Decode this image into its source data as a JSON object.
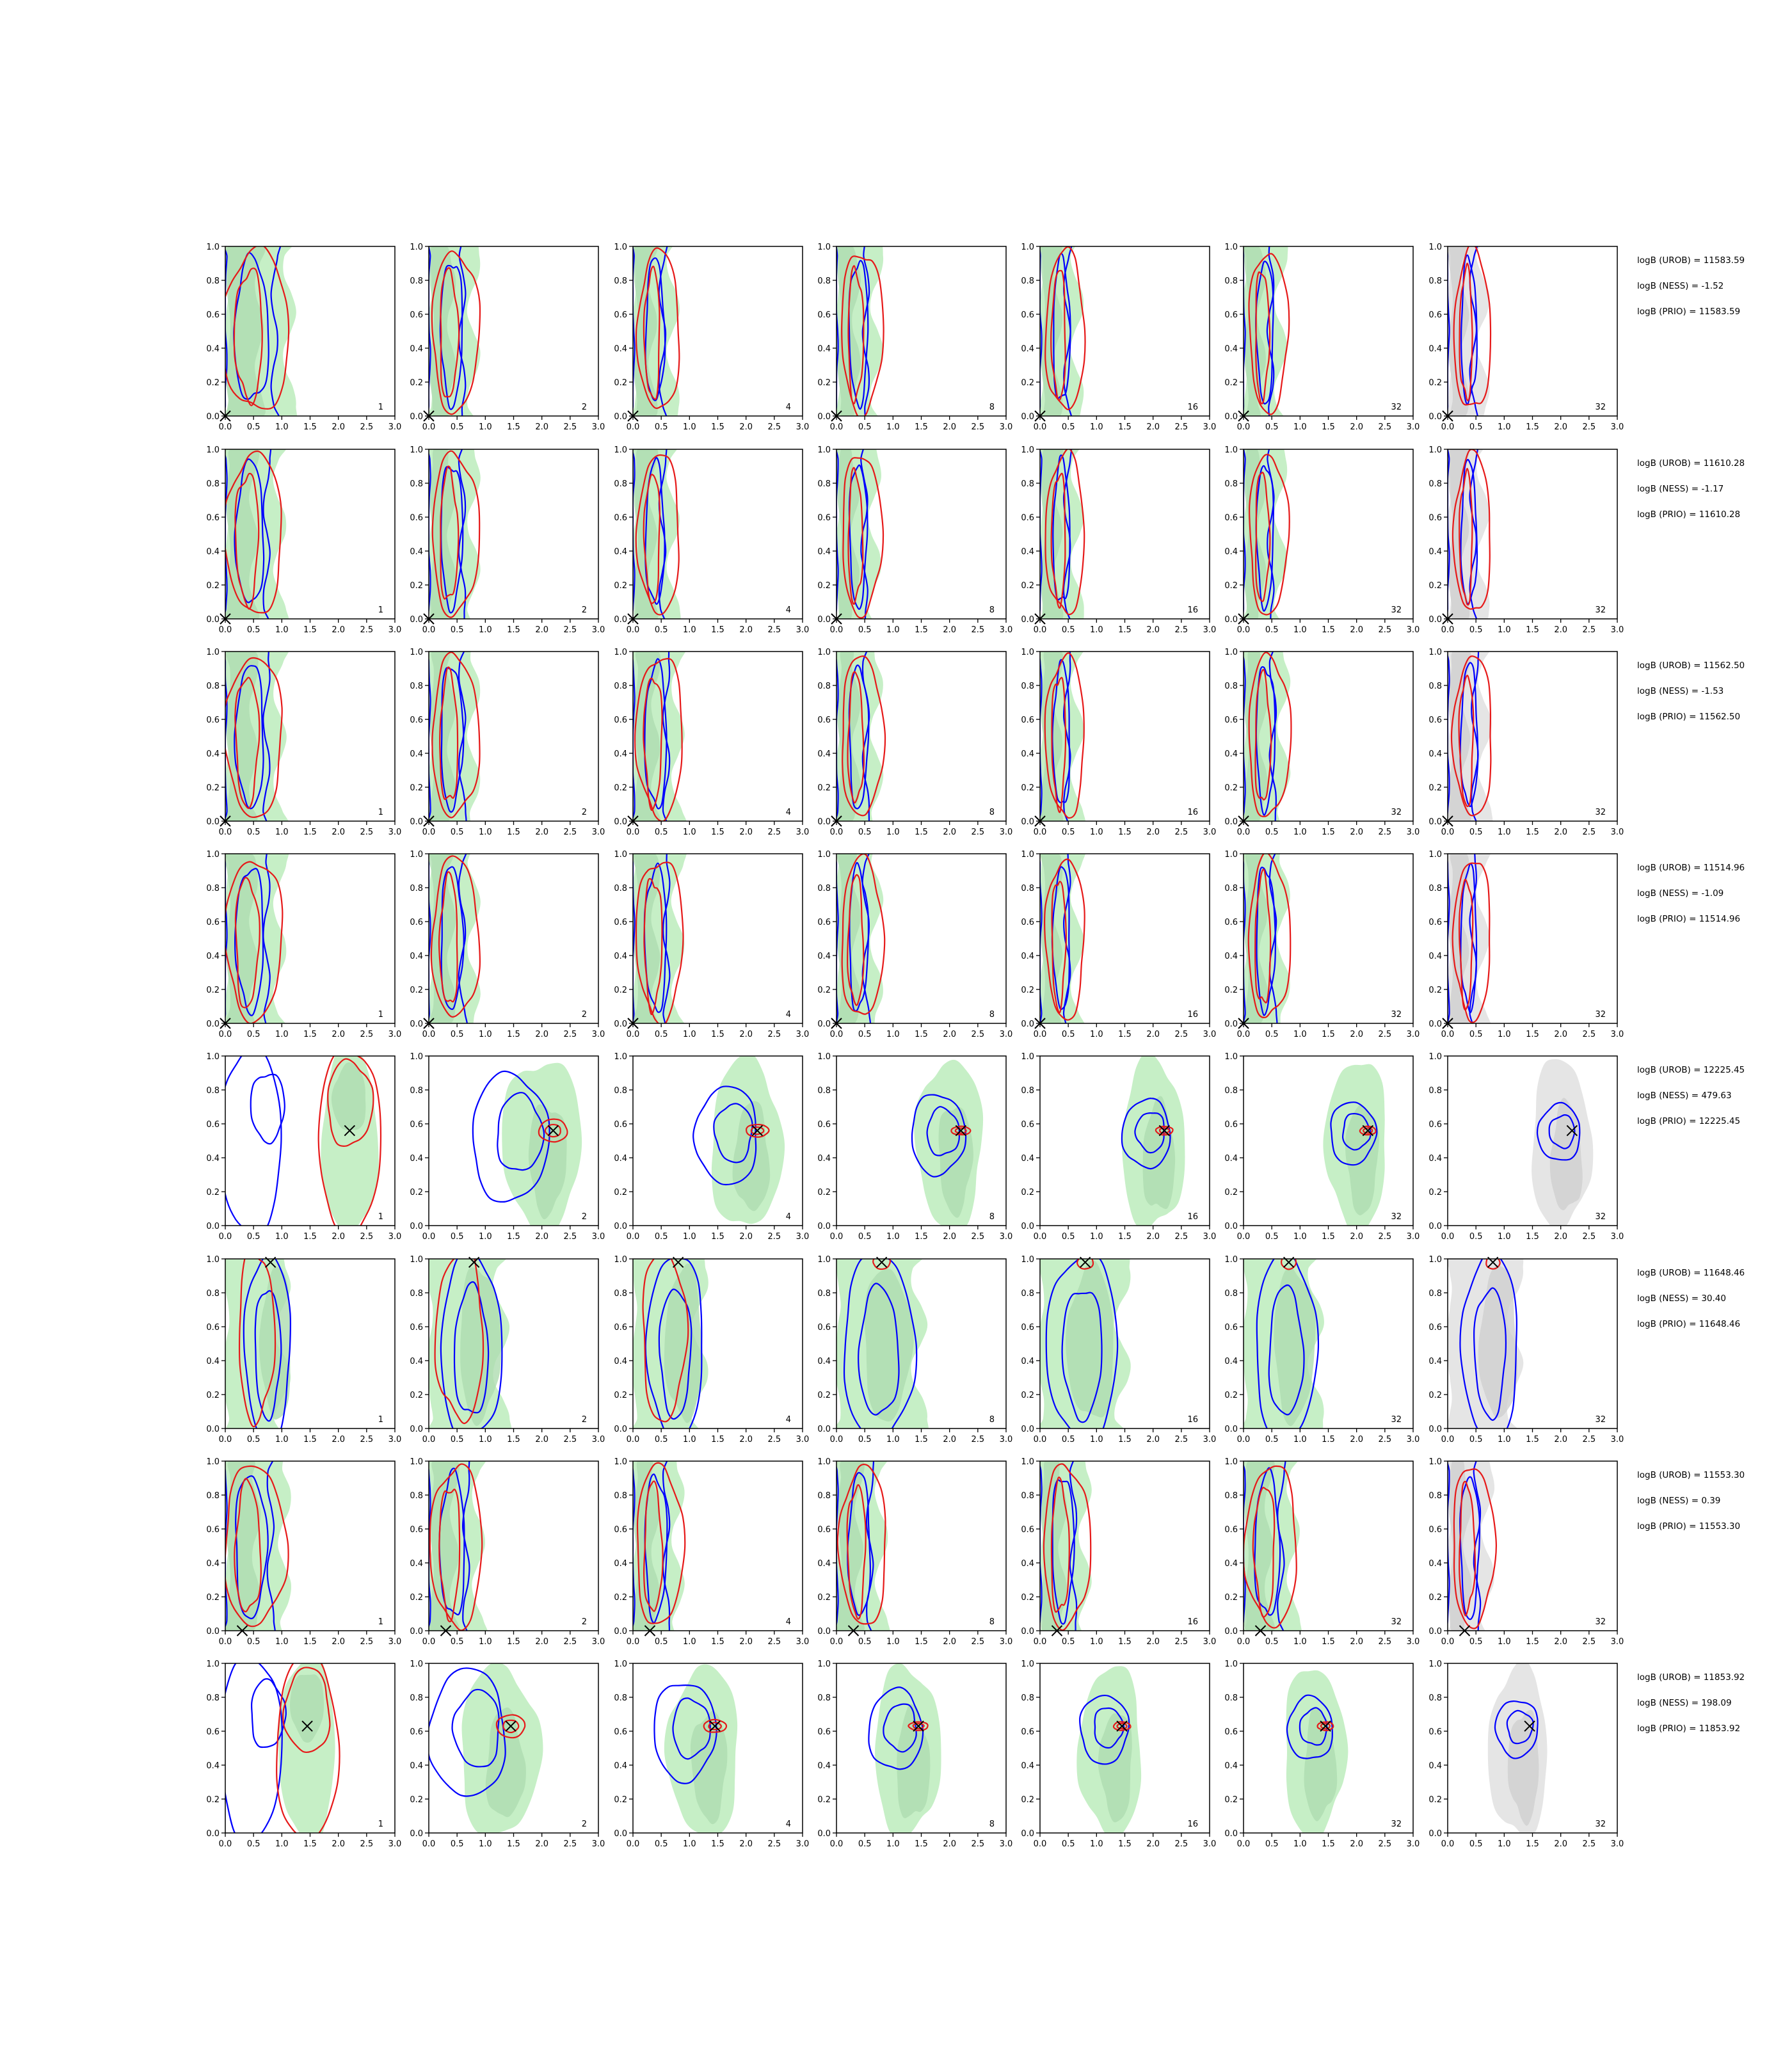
{
  "chart_data": {
    "type": "contour-grid",
    "title": "",
    "xlim": [
      0.0,
      3.0
    ],
    "ylim": [
      0.0,
      1.0
    ],
    "x_ticks": [
      "0.0",
      "0.5",
      "1.0",
      "1.5",
      "2.0",
      "2.5",
      "3.0"
    ],
    "y_ticks": [
      "0.0",
      "0.2",
      "0.4",
      "0.6",
      "0.8",
      "1.0"
    ],
    "column_labels": [
      "1",
      "2",
      "4",
      "8",
      "16",
      "32",
      "32"
    ],
    "colors": {
      "blue_contour": "#0000ff",
      "red_contour": "#e61919",
      "green_fill": "#c6efc6",
      "green_fill_inner": "#aedcb0",
      "gray_fill": "#e5e5e5",
      "gray_fill_inner": "#cfcfcf",
      "marker": "#000000"
    },
    "rows": [
      {
        "truth": {
          "x": 0.0,
          "y": 0.0
        },
        "shape": "vertical",
        "spread": [
          0.55,
          0.35,
          0.3,
          0.3,
          0.27,
          0.27,
          0.25
        ],
        "annotations": [
          "logB (UROB) = 11583.59",
          "logB (NESS) = -1.52",
          "logB (PRIO) = 11583.59"
        ]
      },
      {
        "truth": {
          "x": 0.0,
          "y": 0.0
        },
        "shape": "vertical",
        "spread": [
          0.45,
          0.35,
          0.3,
          0.28,
          0.27,
          0.27,
          0.25
        ],
        "annotations": [
          "logB (UROB) = 11610.28",
          "logB (NESS) = -1.17",
          "logB (PRIO) = 11610.28"
        ]
      },
      {
        "truth": {
          "x": 0.0,
          "y": 0.0
        },
        "shape": "vertical",
        "spread": [
          0.45,
          0.35,
          0.35,
          0.3,
          0.27,
          0.3,
          0.27
        ],
        "annotations": [
          "logB (UROB) = 11562.50",
          "logB (NESS) = -1.53",
          "logB (PRIO) = 11562.50"
        ]
      },
      {
        "truth": {
          "x": 0.0,
          "y": 0.0
        },
        "shape": "vertical",
        "spread": [
          0.45,
          0.35,
          0.35,
          0.3,
          0.27,
          0.3,
          0.25
        ],
        "annotations": [
          "logB (UROB) = 11514.96",
          "logB (NESS) = -1.09",
          "logB (PRIO) = 11514.96"
        ]
      },
      {
        "truth": {
          "x": 2.2,
          "y": 0.56
        },
        "shape": "blob",
        "annotations": [
          "logB (UROB) = 12225.45",
          "logB (NESS) = 479.63",
          "logB (PRIO) = 12225.45"
        ]
      },
      {
        "truth": {
          "x": 0.8,
          "y": 0.98
        },
        "shape": "top",
        "annotations": [
          "logB (UROB) = 11648.46",
          "logB (NESS) = 30.40",
          "logB (PRIO) = 11648.46"
        ]
      },
      {
        "truth": {
          "x": 0.3,
          "y": 0.0
        },
        "shape": "vertical",
        "spread": [
          0.5,
          0.4,
          0.35,
          0.35,
          0.35,
          0.4,
          0.3
        ],
        "annotations": [
          "logB (UROB) = 11553.30",
          "logB (NESS) = 0.39",
          "logB (PRIO) = 11553.30"
        ]
      },
      {
        "truth": {
          "x": 1.45,
          "y": 0.63
        },
        "shape": "blob",
        "annotations": [
          "logB (UROB) = 11853.92",
          "logB (NESS) = 198.09",
          "logB (PRIO) = 11853.92"
        ]
      }
    ]
  }
}
